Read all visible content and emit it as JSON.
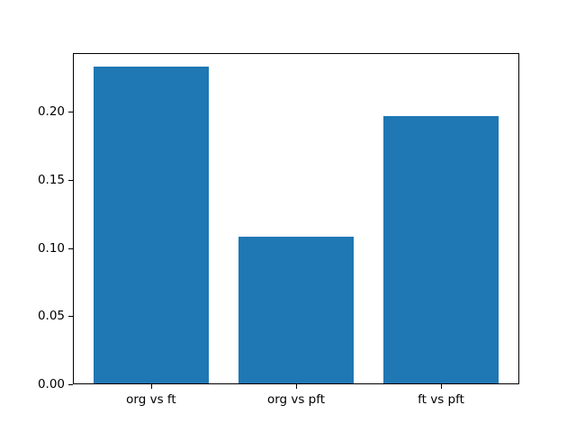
{
  "figure": {
    "background": "#ffffff"
  },
  "chart_data": {
    "type": "bar",
    "categories": [
      "org vs ft",
      "org vs pft",
      "ft vs pft"
    ],
    "values": [
      0.233,
      0.108,
      0.197
    ],
    "title": "",
    "xlabel": "",
    "ylabel": "",
    "bar_color": "#1f77b4",
    "spine_color": "#000000",
    "tick_color": "#000000",
    "tick_label_color": "#000000",
    "ylim": [
      0,
      0.243
    ],
    "yticks": [
      0,
      0.05,
      0.1,
      0.15,
      0.2
    ],
    "ytick_decimals": 2,
    "xlim": [
      -0.54,
      2.54
    ],
    "bar_width": 0.8,
    "grid": false,
    "legend": "none"
  }
}
